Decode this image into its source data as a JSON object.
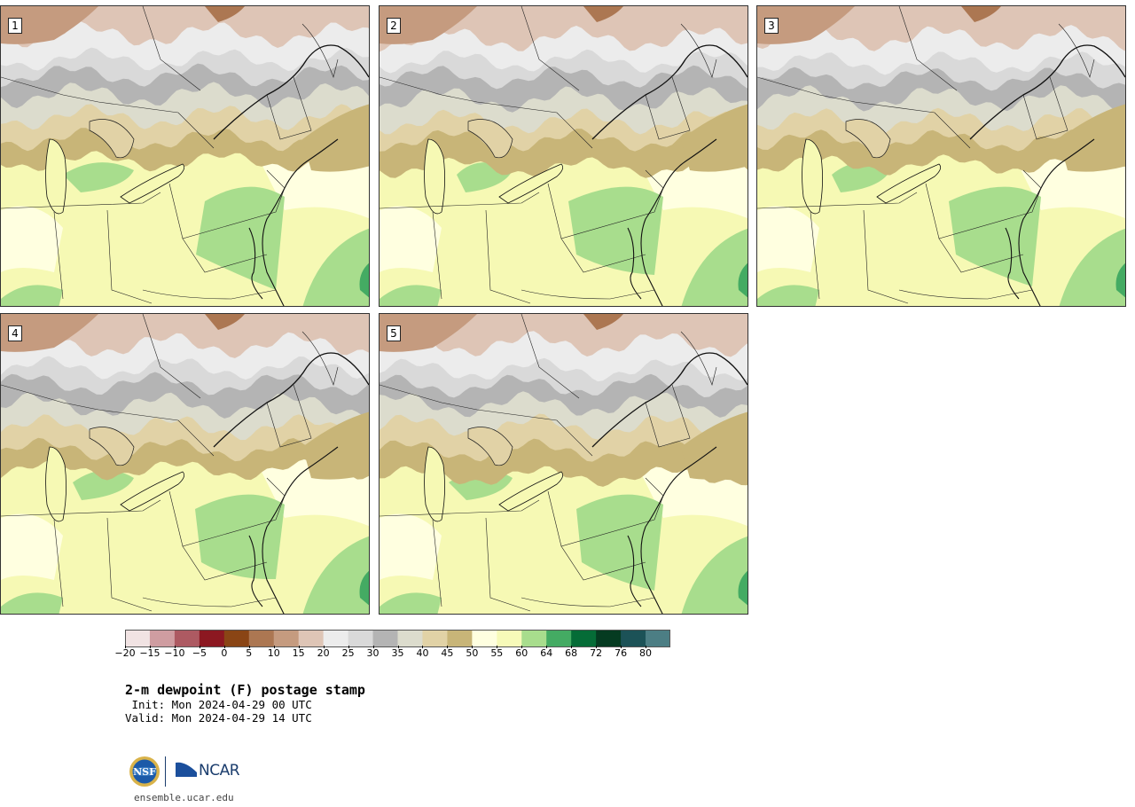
{
  "panels": [
    {
      "label": "1"
    },
    {
      "label": "2"
    },
    {
      "label": "3"
    },
    {
      "label": "4"
    },
    {
      "label": "5"
    }
  ],
  "colorbar": {
    "colors": [
      "#f1e3e3",
      "#cf9da1",
      "#ad5a62",
      "#8c1821",
      "#8a4515",
      "#ac7752",
      "#c59b7f",
      "#dec5b6",
      "#ececec",
      "#d9d9d9",
      "#b4b4b4",
      "#dcdccd",
      "#e1d2a6",
      "#c8b578",
      "#ffffe0",
      "#f7fab9",
      "#a8dd8d",
      "#44ab63",
      "#056c37",
      "#053b21",
      "#1c5257",
      "#4c7e84"
    ],
    "ticks": [
      "−20",
      "−15",
      "−10",
      "−5",
      "0",
      "5",
      "10",
      "15",
      "20",
      "25",
      "30",
      "35",
      "40",
      "45",
      "50",
      "55",
      "60",
      "64",
      "68",
      "72",
      "76",
      "80"
    ]
  },
  "title": "2-m dewpoint (F) postage stamp",
  "init": " Init: Mon 2024-04-29 00 UTC",
  "valid": "Valid: Mon 2024-04-29 14 UTC",
  "logos": {
    "nsf": "NSF",
    "ncar": "NCAR"
  },
  "url": "ensemble.ucar.edu"
}
